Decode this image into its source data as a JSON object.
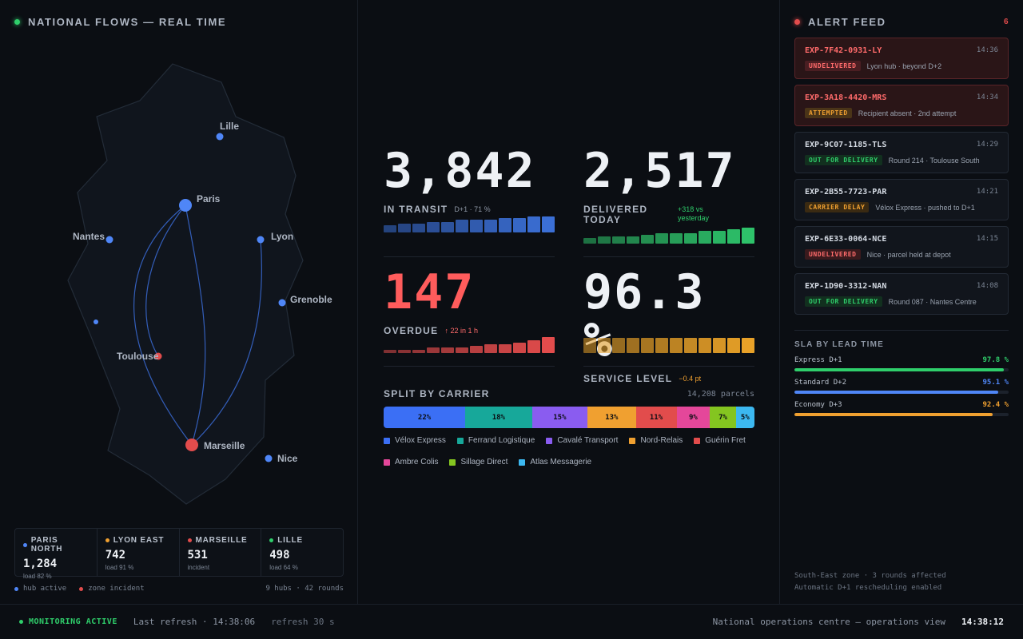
{
  "left": {
    "title": "NATIONAL FLOWS — REAL TIME",
    "cities": [
      {
        "name": "Lille",
        "kind": "hub"
      },
      {
        "name": "Paris",
        "kind": "hub-major"
      },
      {
        "name": "Nantes",
        "kind": "hub"
      },
      {
        "name": "Lyon",
        "kind": "hub"
      },
      {
        "name": "Grenoble",
        "kind": "hub"
      },
      {
        "name": "",
        "kind": "hub"
      },
      {
        "name": "Toulouse",
        "kind": "incident"
      },
      {
        "name": "Marseille",
        "kind": "incident-major"
      },
      {
        "name": "Nice",
        "kind": "hub"
      }
    ],
    "hubs": [
      {
        "name": "PARIS NORTH",
        "value": "1,284",
        "sub": "load 82 %",
        "color": "#4f86f7"
      },
      {
        "name": "LYON EAST",
        "value": "742",
        "sub": "load 91 %",
        "color": "#f0a030"
      },
      {
        "name": "MARSEILLE",
        "value": "531",
        "sub": "incident",
        "color": "#e24c4c"
      },
      {
        "name": "LILLE",
        "value": "498",
        "sub": "load 64 %",
        "color": "#2fce6b"
      }
    ],
    "legend": {
      "active": "hub active",
      "incident": "zone incident",
      "summary": "9 hubs · 42 rounds"
    }
  },
  "kpis": {
    "transit": {
      "value": "3,842",
      "label": "IN TRANSIT",
      "sub": "D+1 · 71 %",
      "spark": [
        4,
        5,
        5,
        6,
        6,
        7,
        7,
        7,
        8,
        8,
        9,
        9
      ],
      "color": "#3b6fd6"
    },
    "delivered": {
      "value": "2,517",
      "label": "DELIVERED TODAY",
      "sub": "+318 vs yesterday",
      "spark": [
        3,
        4,
        4,
        4,
        5,
        6,
        6,
        6,
        7,
        7,
        8,
        9
      ],
      "color": "#2ec26a"
    },
    "overdue": {
      "value": "147",
      "label": "OVERDUE",
      "sub": "↑ 22 in 1 h",
      "spark": [
        2,
        2,
        2,
        3,
        3,
        3,
        4,
        5,
        5,
        6,
        7,
        9
      ],
      "color": "#e24c4c"
    },
    "service": {
      "value": "96.3 %",
      "label": "SERVICE LEVEL",
      "sub": "−0.4 pt",
      "spark": [
        8,
        8,
        8,
        8,
        8,
        8,
        8,
        8,
        8,
        8,
        8,
        8
      ],
      "color": "#e8a128"
    }
  },
  "split": {
    "title": "SPLIT BY CARRIER",
    "total": "14,208 parcels",
    "carriers": [
      {
        "name": "Vélox Express",
        "pct": 22,
        "label": "22%",
        "color": "#3b6ff5"
      },
      {
        "name": "Ferrand Logistique",
        "pct": 18,
        "label": "18%",
        "color": "#17a89a"
      },
      {
        "name": "Cavalé Transport",
        "pct": 15,
        "label": "15%",
        "color": "#8a5cf0"
      },
      {
        "name": "Nord-Relais",
        "pct": 13,
        "label": "13%",
        "color": "#f0a030"
      },
      {
        "name": "Guérin Fret",
        "pct": 11,
        "label": "11%",
        "color": "#e24c4c"
      },
      {
        "name": "Ambre Colis",
        "pct": 9,
        "label": "9%",
        "color": "#e4479a"
      },
      {
        "name": "Sillage Direct",
        "pct": 7,
        "label": "7%",
        "color": "#84c520"
      },
      {
        "name": "Atlas Messagerie",
        "pct": 5,
        "label": "5%",
        "color": "#3cb8f0"
      }
    ]
  },
  "alerts": {
    "title": "ALERT FEED",
    "count": "6",
    "items": [
      {
        "id": "EXP-7F42-0931-LY",
        "time": "14:36",
        "status": "UNDELIVERED",
        "text": "Lyon hub · beyond D+2",
        "tone": "red",
        "badge_bg": "#4a1e22",
        "badge_fg": "#ff6b6b"
      },
      {
        "id": "EXP-3A18-4420-MRS",
        "time": "14:34",
        "status": "ATTEMPTED",
        "text": "Recipient absent · 2nd attempt",
        "tone": "red",
        "badge_bg": "#4a3418",
        "badge_fg": "#f0a030"
      },
      {
        "id": "EXP-9C07-1185-TLS",
        "time": "14:29",
        "status": "OUT FOR DELIVERY",
        "text": "Round 214 · Toulouse South",
        "tone": "plain",
        "badge_bg": "#12301f",
        "badge_fg": "#2fce6b"
      },
      {
        "id": "EXP-2B55-7723-PAR",
        "time": "14:21",
        "status": "CARRIER DELAY",
        "text": "Vélox Express · pushed to D+1",
        "tone": "plain",
        "badge_bg": "#3a2a12",
        "badge_fg": "#f0a030"
      },
      {
        "id": "EXP-6E33-0064-NCE",
        "time": "14:15",
        "status": "UNDELIVERED",
        "text": "Nice · parcel held at depot",
        "tone": "plain",
        "badge_bg": "#3a1a1d",
        "badge_fg": "#ff6b6b"
      },
      {
        "id": "EXP-1D90-3312-NAN",
        "time": "14:08",
        "status": "OUT FOR DELIVERY",
        "text": "Round 087 · Nantes Centre",
        "tone": "plain",
        "badge_bg": "#12301f",
        "badge_fg": "#2fce6b"
      }
    ]
  },
  "sla": {
    "title": "SLA BY LEAD TIME",
    "rows": [
      {
        "name": "Express D+1",
        "pct": 97.8,
        "label": "97.8 %",
        "color": "#2fce6b"
      },
      {
        "name": "Standard D+2",
        "pct": 95.1,
        "label": "95.1 %",
        "color": "#4f86f7"
      },
      {
        "name": "Economy D+3",
        "pct": 92.4,
        "label": "92.4 %",
        "color": "#f0a030"
      }
    ],
    "note1": "South-East zone · 3 rounds affected",
    "note2": "Automatic D+1 rescheduling enabled"
  },
  "footer": {
    "status": "MONITORING ACTIVE",
    "last_refresh": "Last refresh · 14:38:06",
    "refresh": "refresh 30 s",
    "view": "National operations centre — operations view",
    "clock": "14:38:12"
  }
}
